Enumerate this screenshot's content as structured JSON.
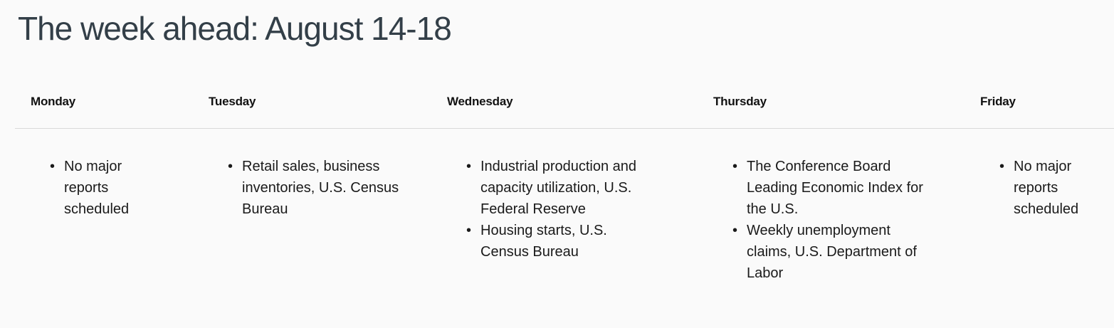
{
  "page": {
    "title": "The week ahead: August 14-18"
  },
  "colors": {
    "background": "#fafafa",
    "title": "#333f48",
    "day_heading": "#111111",
    "body_text": "#1a1a1a",
    "divider": "#d9d9d9"
  },
  "calendar": {
    "columns": [
      {
        "day": "Monday",
        "items": [
          "No major reports scheduled"
        ]
      },
      {
        "day": "Tuesday",
        "items": [
          "Retail sales, business inventories, U.S. Census Bureau"
        ]
      },
      {
        "day": "Wednesday",
        "items": [
          "Industrial production and capacity utilization, U.S. Federal Reserve",
          "Housing starts, U.S. Census Bureau"
        ]
      },
      {
        "day": "Thursday",
        "items": [
          "The Conference Board Leading Economic Index for the U.S.",
          "Weekly unemployment claims, U.S. Department of Labor"
        ]
      },
      {
        "day": "Friday",
        "items": [
          "No major reports scheduled"
        ]
      }
    ]
  }
}
